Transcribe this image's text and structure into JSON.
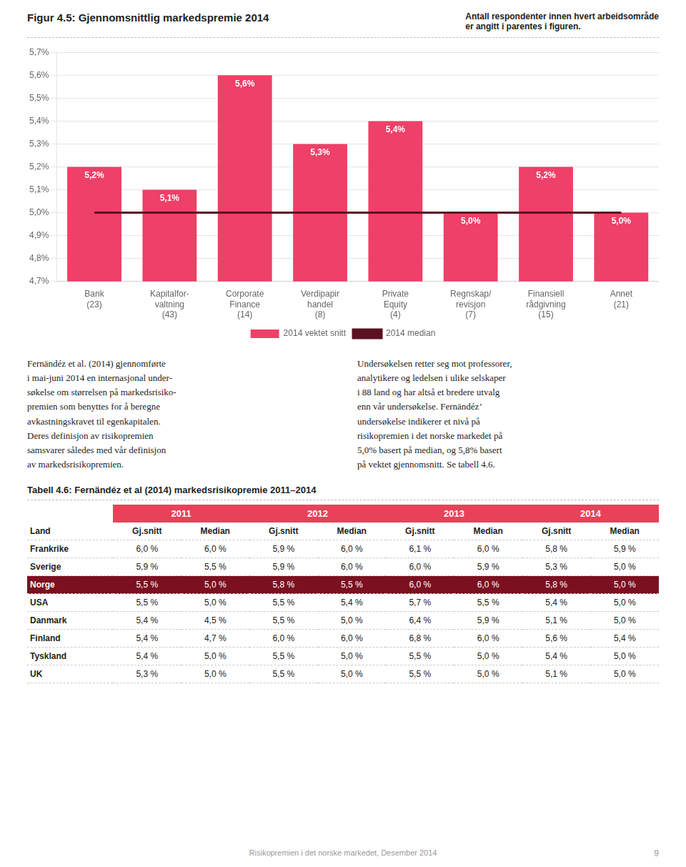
{
  "chart_data": {
    "type": "bar",
    "title": "Figur 4.5: Gjennomsnittlig markedspremie 2014",
    "categories": [
      "Bank\n(23)",
      "Kapitalfor-\nvaltning\n(43)",
      "Corporate\nFinance\n(14)",
      "Verdipapir\nhandel\n(8)",
      "Private\nEquity\n(4)",
      "Regnskap/\nrevisjon\n(7)",
      "Finansiell\nrådgivning\n(15)",
      "Annet\n(21)"
    ],
    "series": [
      {
        "name": "2014 vektet snitt",
        "type": "bar",
        "color": "#EE4068",
        "values": [
          5.2,
          5.1,
          5.6,
          5.3,
          5.4,
          5.0,
          5.2,
          5.0
        ],
        "value_labels": [
          "5,2%",
          "5,1%",
          "5,6%",
          "5,3%",
          "5,4%",
          "5,0%",
          "5,2%",
          "5,0%"
        ]
      },
      {
        "name": "2014 median",
        "type": "line",
        "color": "#5C1020",
        "values": [
          5.0,
          5.0,
          5.0,
          5.0,
          5.0,
          5.0,
          5.0,
          5.0
        ]
      }
    ],
    "ylim": [
      4.7,
      5.7
    ],
    "yticks": [
      {
        "value": 4.7,
        "label": "4,7%"
      },
      {
        "value": 4.8,
        "label": "4,8%"
      },
      {
        "value": 4.9,
        "label": "4,9%"
      },
      {
        "value": 5.0,
        "label": "5,0%"
      },
      {
        "value": 5.1,
        "label": "5,1%"
      },
      {
        "value": 5.2,
        "label": "5,2%"
      },
      {
        "value": 5.3,
        "label": "5,3%"
      },
      {
        "value": 5.4,
        "label": "5,4%"
      },
      {
        "value": 5.5,
        "label": "5,5%"
      },
      {
        "value": 5.6,
        "label": "5,6%"
      },
      {
        "value": 5.7,
        "label": "5,7%"
      }
    ],
    "grid": true,
    "legend": "bottom",
    "data_labels": true
  },
  "note": "Antall respondenter innen hvert arbeidsområde\ner angitt i parentes i figuren.",
  "paragraphs": [
    "Fernändéz et al. (2014) gjennomførte\ni mai-juni 2014 en internasjonal under-\nsøkelse om størrelsen på markedsrisiko-\npremien som benyttes for å beregne\navkastningskravet til egenkapitalen.\nDeres definisjon av risikopremien\nsamsvarer således med vår definisjon\nav markedsrisikopremien.",
    "Undersøkelsen retter seg mot professorer,\nanalytikere og ledelsen i ulike selskaper\ni 88 land og har altså et bredere utvalg\nenn vår undersøkelse. Fernändéz’\nundersøkelse indikerer et nivå på\nrisikopremien i det norske markedet på\n5,0% basert på median, og 5,8% basert\npå vektet gjennomsnitt. Se tabell 4.6."
  ],
  "table": {
    "title": "Tabell 4.6: Fernändéz et al (2014) markedsrisikopremie 2011–2014",
    "years": [
      "2011",
      "2012",
      "2013",
      "2014"
    ],
    "columns": [
      "Land",
      "Gj.snitt",
      "Median",
      "Gj.snitt",
      "Median",
      "Gj.snitt",
      "Median",
      "Gj.snitt",
      "Median"
    ],
    "rows": [
      [
        "Frankrike",
        "6,0 %",
        "6,0 %",
        "5,9 %",
        "6,0 %",
        "6,1 %",
        "6,0 %",
        "5,8 %",
        "5,9 %"
      ],
      [
        "Sverige",
        "5,9 %",
        "5,5 %",
        "5,9 %",
        "6,0 %",
        "6,0 %",
        "5,9 %",
        "5,3 %",
        "5,0 %"
      ],
      [
        "Norge",
        "5,5 %",
        "5,0 %",
        "5,8 %",
        "5,5 %",
        "6,0 %",
        "6,0 %",
        "5,8 %",
        "5,0 %"
      ],
      [
        "USA",
        "5,5 %",
        "5,0 %",
        "5,5 %",
        "5,4 %",
        "5,7 %",
        "5,5 %",
        "5,4 %",
        "5,0 %"
      ],
      [
        "Danmark",
        "5,4 %",
        "4,5 %",
        "5,5 %",
        "5,0 %",
        "6,4 %",
        "5,9 %",
        "5,1 %",
        "5,0 %"
      ],
      [
        "Finland",
        "5,4 %",
        "4,7 %",
        "6,0 %",
        "6,0 %",
        "6,8 %",
        "6,0 %",
        "5,6 %",
        "5,4 %"
      ],
      [
        "Tyskland",
        "5,4 %",
        "5,0 %",
        "5,5 %",
        "5,0 %",
        "5,5 %",
        "5,0 %",
        "5,4 %",
        "5,0 %"
      ],
      [
        "UK",
        "5,3 %",
        "5,0 %",
        "5,5 %",
        "5,0 %",
        "5,5 %",
        "5,0 %",
        "5,1 %",
        "5,0 %"
      ]
    ],
    "highlight_row": 2,
    "highlight_color": "#7B1020",
    "header_color": "#E8425A"
  },
  "footer": "Risikopremien i det norske markedet, Desember 2014",
  "page": "9"
}
